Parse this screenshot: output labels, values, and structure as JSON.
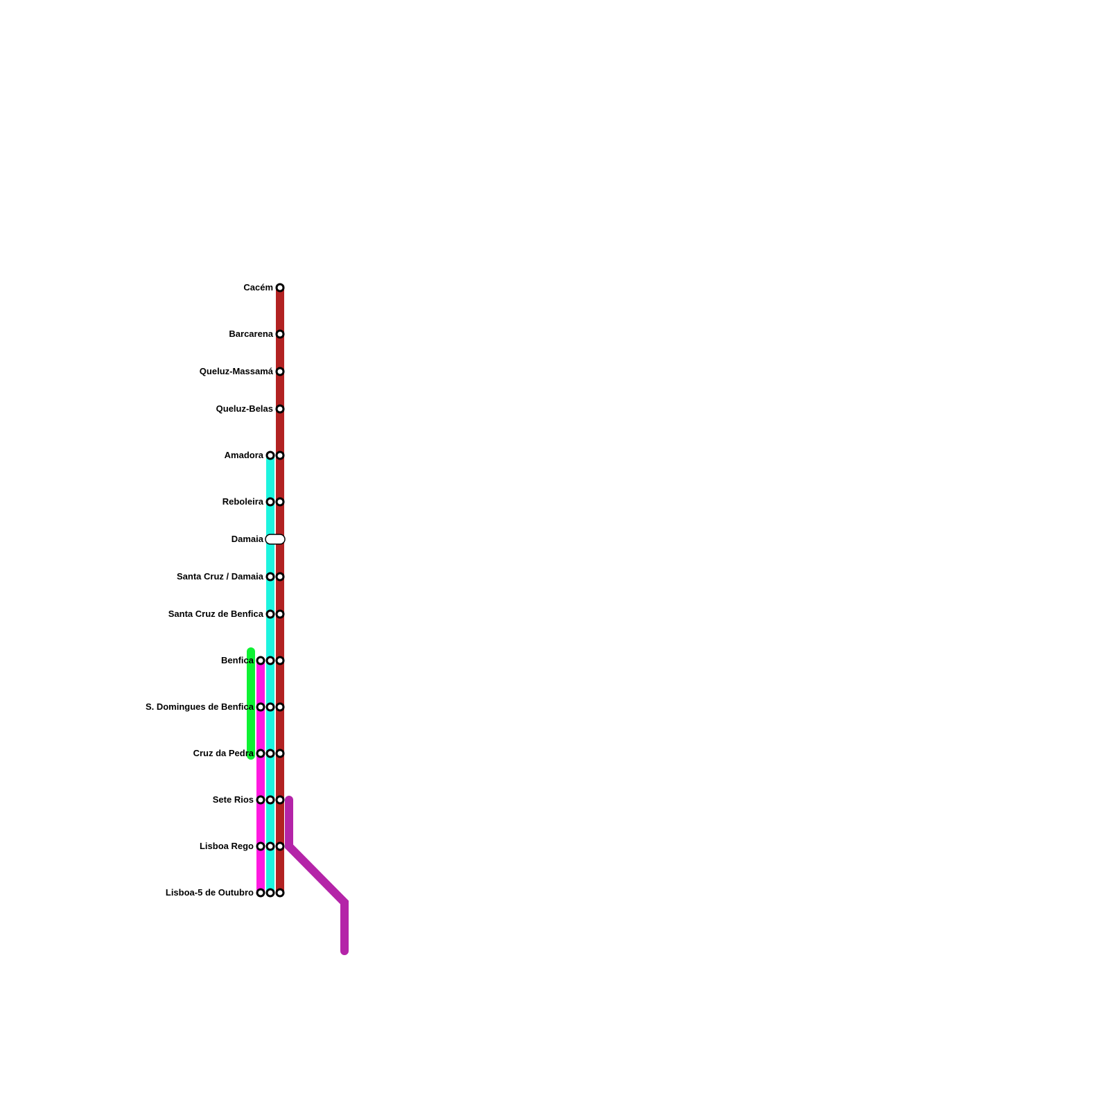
{
  "lines": [
    {
      "id": "red",
      "color": "#b22222"
    },
    {
      "id": "cyan",
      "color": "#1ef4df"
    },
    {
      "id": "magenta",
      "color": "#ff1ae0"
    },
    {
      "id": "green",
      "color": "#0ef233"
    },
    {
      "id": "purple",
      "color": "#b424a8"
    }
  ],
  "stations": [
    {
      "name": "Cacém",
      "lines": [
        "red"
      ]
    },
    {
      "name": "Barcarena",
      "lines": [
        "red"
      ]
    },
    {
      "name": "Queluz-Massamá",
      "lines": [
        "red"
      ]
    },
    {
      "name": "Queluz-Belas",
      "lines": [
        "red"
      ]
    },
    {
      "name": "Amadora",
      "lines": [
        "cyan",
        "red"
      ]
    },
    {
      "name": "Reboleira",
      "lines": [
        "cyan",
        "red"
      ]
    },
    {
      "name": "Damaia",
      "lines": [
        "cyan",
        "red"
      ],
      "interchange": true
    },
    {
      "name": "Santa Cruz / Damaia",
      "lines": [
        "cyan",
        "red"
      ]
    },
    {
      "name": "Santa Cruz de Benfica",
      "lines": [
        "cyan",
        "red"
      ]
    },
    {
      "name": "Benfica",
      "lines": [
        "magenta",
        "cyan",
        "red"
      ]
    },
    {
      "name": "S. Domingues de Benfica",
      "lines": [
        "magenta",
        "cyan",
        "red"
      ]
    },
    {
      "name": "Cruz da Pedra",
      "lines": [
        "magenta",
        "cyan",
        "red"
      ]
    },
    {
      "name": "Sete Rios",
      "lines": [
        "magenta",
        "cyan",
        "red"
      ]
    },
    {
      "name": "Lisboa Rego",
      "lines": [
        "magenta",
        "cyan",
        "red"
      ]
    },
    {
      "name": "Lisboa-5 de Outubro",
      "lines": [
        "magenta",
        "cyan",
        "red"
      ]
    }
  ]
}
